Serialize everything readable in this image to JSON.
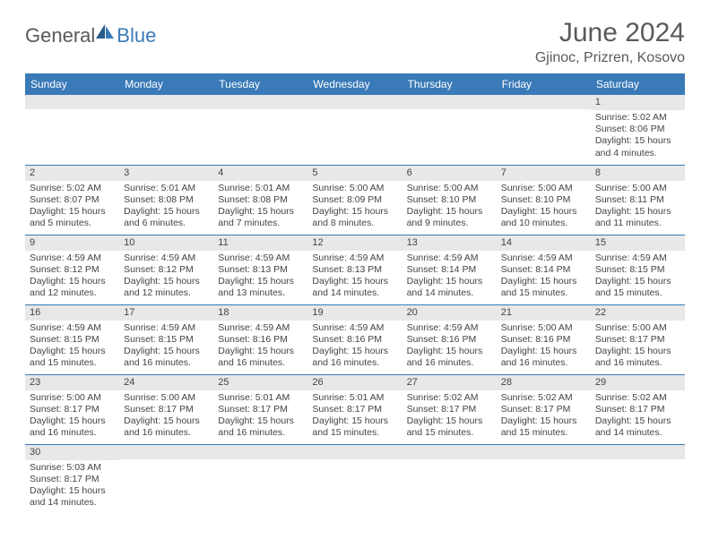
{
  "logo": {
    "text1": "General",
    "text2": "Blue"
  },
  "title": "June 2024",
  "location": "Gjinoc, Prizren, Kosovo",
  "colors": {
    "header_bg": "#3a7ab8",
    "header_fg": "#ffffff",
    "daynum_bg": "#e8e8e8",
    "row_border": "#3a7ab8",
    "text": "#444444",
    "title_text": "#5a5a5a",
    "logo_gray": "#5a5a5a",
    "logo_blue": "#3a7ab8",
    "page_bg": "#ffffff"
  },
  "typography": {
    "title_fontsize": 30,
    "location_fontsize": 16,
    "dayheader_fontsize": 12,
    "daynum_fontsize": 11,
    "body_fontsize": 10.5,
    "font_family": "Arial"
  },
  "day_headers": [
    "Sunday",
    "Monday",
    "Tuesday",
    "Wednesday",
    "Thursday",
    "Friday",
    "Saturday"
  ],
  "weeks": [
    [
      {
        "blank": true
      },
      {
        "blank": true
      },
      {
        "blank": true
      },
      {
        "blank": true
      },
      {
        "blank": true
      },
      {
        "blank": true
      },
      {
        "num": "1",
        "sunrise": "Sunrise: 5:02 AM",
        "sunset": "Sunset: 8:06 PM",
        "daylight": "Daylight: 15 hours and 4 minutes."
      }
    ],
    [
      {
        "num": "2",
        "sunrise": "Sunrise: 5:02 AM",
        "sunset": "Sunset: 8:07 PM",
        "daylight": "Daylight: 15 hours and 5 minutes."
      },
      {
        "num": "3",
        "sunrise": "Sunrise: 5:01 AM",
        "sunset": "Sunset: 8:08 PM",
        "daylight": "Daylight: 15 hours and 6 minutes."
      },
      {
        "num": "4",
        "sunrise": "Sunrise: 5:01 AM",
        "sunset": "Sunset: 8:08 PM",
        "daylight": "Daylight: 15 hours and 7 minutes."
      },
      {
        "num": "5",
        "sunrise": "Sunrise: 5:00 AM",
        "sunset": "Sunset: 8:09 PM",
        "daylight": "Daylight: 15 hours and 8 minutes."
      },
      {
        "num": "6",
        "sunrise": "Sunrise: 5:00 AM",
        "sunset": "Sunset: 8:10 PM",
        "daylight": "Daylight: 15 hours and 9 minutes."
      },
      {
        "num": "7",
        "sunrise": "Sunrise: 5:00 AM",
        "sunset": "Sunset: 8:10 PM",
        "daylight": "Daylight: 15 hours and 10 minutes."
      },
      {
        "num": "8",
        "sunrise": "Sunrise: 5:00 AM",
        "sunset": "Sunset: 8:11 PM",
        "daylight": "Daylight: 15 hours and 11 minutes."
      }
    ],
    [
      {
        "num": "9",
        "sunrise": "Sunrise: 4:59 AM",
        "sunset": "Sunset: 8:12 PM",
        "daylight": "Daylight: 15 hours and 12 minutes."
      },
      {
        "num": "10",
        "sunrise": "Sunrise: 4:59 AM",
        "sunset": "Sunset: 8:12 PM",
        "daylight": "Daylight: 15 hours and 12 minutes."
      },
      {
        "num": "11",
        "sunrise": "Sunrise: 4:59 AM",
        "sunset": "Sunset: 8:13 PM",
        "daylight": "Daylight: 15 hours and 13 minutes."
      },
      {
        "num": "12",
        "sunrise": "Sunrise: 4:59 AM",
        "sunset": "Sunset: 8:13 PM",
        "daylight": "Daylight: 15 hours and 14 minutes."
      },
      {
        "num": "13",
        "sunrise": "Sunrise: 4:59 AM",
        "sunset": "Sunset: 8:14 PM",
        "daylight": "Daylight: 15 hours and 14 minutes."
      },
      {
        "num": "14",
        "sunrise": "Sunrise: 4:59 AM",
        "sunset": "Sunset: 8:14 PM",
        "daylight": "Daylight: 15 hours and 15 minutes."
      },
      {
        "num": "15",
        "sunrise": "Sunrise: 4:59 AM",
        "sunset": "Sunset: 8:15 PM",
        "daylight": "Daylight: 15 hours and 15 minutes."
      }
    ],
    [
      {
        "num": "16",
        "sunrise": "Sunrise: 4:59 AM",
        "sunset": "Sunset: 8:15 PM",
        "daylight": "Daylight: 15 hours and 15 minutes."
      },
      {
        "num": "17",
        "sunrise": "Sunrise: 4:59 AM",
        "sunset": "Sunset: 8:15 PM",
        "daylight": "Daylight: 15 hours and 16 minutes."
      },
      {
        "num": "18",
        "sunrise": "Sunrise: 4:59 AM",
        "sunset": "Sunset: 8:16 PM",
        "daylight": "Daylight: 15 hours and 16 minutes."
      },
      {
        "num": "19",
        "sunrise": "Sunrise: 4:59 AM",
        "sunset": "Sunset: 8:16 PM",
        "daylight": "Daylight: 15 hours and 16 minutes."
      },
      {
        "num": "20",
        "sunrise": "Sunrise: 4:59 AM",
        "sunset": "Sunset: 8:16 PM",
        "daylight": "Daylight: 15 hours and 16 minutes."
      },
      {
        "num": "21",
        "sunrise": "Sunrise: 5:00 AM",
        "sunset": "Sunset: 8:16 PM",
        "daylight": "Daylight: 15 hours and 16 minutes."
      },
      {
        "num": "22",
        "sunrise": "Sunrise: 5:00 AM",
        "sunset": "Sunset: 8:17 PM",
        "daylight": "Daylight: 15 hours and 16 minutes."
      }
    ],
    [
      {
        "num": "23",
        "sunrise": "Sunrise: 5:00 AM",
        "sunset": "Sunset: 8:17 PM",
        "daylight": "Daylight: 15 hours and 16 minutes."
      },
      {
        "num": "24",
        "sunrise": "Sunrise: 5:00 AM",
        "sunset": "Sunset: 8:17 PM",
        "daylight": "Daylight: 15 hours and 16 minutes."
      },
      {
        "num": "25",
        "sunrise": "Sunrise: 5:01 AM",
        "sunset": "Sunset: 8:17 PM",
        "daylight": "Daylight: 15 hours and 16 minutes."
      },
      {
        "num": "26",
        "sunrise": "Sunrise: 5:01 AM",
        "sunset": "Sunset: 8:17 PM",
        "daylight": "Daylight: 15 hours and 15 minutes."
      },
      {
        "num": "27",
        "sunrise": "Sunrise: 5:02 AM",
        "sunset": "Sunset: 8:17 PM",
        "daylight": "Daylight: 15 hours and 15 minutes."
      },
      {
        "num": "28",
        "sunrise": "Sunrise: 5:02 AM",
        "sunset": "Sunset: 8:17 PM",
        "daylight": "Daylight: 15 hours and 15 minutes."
      },
      {
        "num": "29",
        "sunrise": "Sunrise: 5:02 AM",
        "sunset": "Sunset: 8:17 PM",
        "daylight": "Daylight: 15 hours and 14 minutes."
      }
    ],
    [
      {
        "num": "30",
        "sunrise": "Sunrise: 5:03 AM",
        "sunset": "Sunset: 8:17 PM",
        "daylight": "Daylight: 15 hours and 14 minutes."
      },
      {
        "blank": true
      },
      {
        "blank": true
      },
      {
        "blank": true
      },
      {
        "blank": true
      },
      {
        "blank": true
      },
      {
        "blank": true
      }
    ]
  ]
}
